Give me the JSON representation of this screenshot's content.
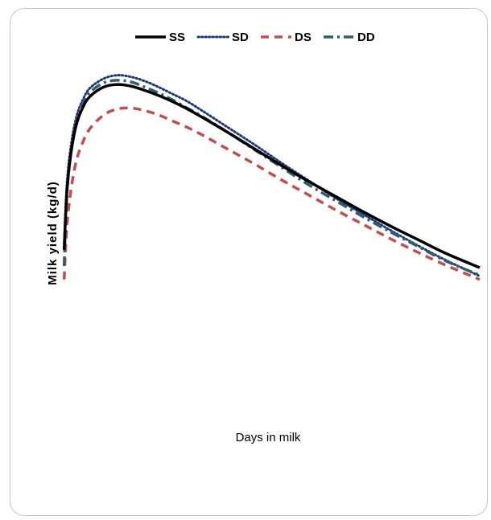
{
  "chart_data": {
    "type": "line",
    "title": "",
    "xlabel": "Days in milk",
    "ylabel": "Milk yield (kg/d)",
    "grid": false,
    "legend_position": "top",
    "x_range": [
      0,
      305
    ],
    "y_range": [
      0,
      40
    ],
    "x": [
      1,
      3,
      6,
      10,
      15,
      20,
      30,
      40,
      50,
      60,
      70,
      80,
      90,
      100,
      120,
      140,
      160,
      180,
      200,
      220,
      240,
      260,
      280,
      305
    ],
    "series": [
      {
        "name": "SS",
        "color": "#000000",
        "style": "solid",
        "values": [
          16.1,
          23.0,
          27.6,
          31.0,
          33.1,
          34.3,
          35.4,
          35.7,
          35.5,
          35.0,
          34.4,
          33.7,
          32.9,
          32.0,
          30.1,
          28.1,
          26.1,
          24.2,
          22.4,
          20.6,
          18.9,
          17.3,
          15.7,
          14.0
        ]
      },
      {
        "name": "SD",
        "color": "#1f3a7a",
        "style": "dotted",
        "values": [
          16.8,
          23.9,
          28.5,
          31.9,
          34.0,
          35.3,
          36.4,
          36.8,
          36.6,
          36.1,
          35.4,
          34.6,
          33.8,
          32.8,
          30.7,
          28.6,
          26.4,
          24.3,
          22.2,
          20.3,
          18.4,
          16.6,
          14.9,
          13.0
        ]
      },
      {
        "name": "DS",
        "color": "#c0504d",
        "style": "dashed",
        "values": [
          12.6,
          18.8,
          23.2,
          26.7,
          29.0,
          30.5,
          32.1,
          32.8,
          32.9,
          32.6,
          32.1,
          31.4,
          30.7,
          29.9,
          28.1,
          26.3,
          24.4,
          22.6,
          20.8,
          19.1,
          17.4,
          15.8,
          14.3,
          12.6
        ]
      },
      {
        "name": "DD",
        "color": "#2f5f6f",
        "style": "dashdot",
        "values": [
          14.2,
          22.6,
          27.7,
          31.3,
          33.5,
          34.8,
          35.9,
          36.2,
          36.0,
          35.4,
          34.7,
          33.9,
          33.0,
          32.1,
          30.1,
          28.0,
          25.9,
          23.8,
          21.9,
          20.0,
          18.2,
          16.5,
          14.8,
          13.1
        ]
      }
    ]
  }
}
